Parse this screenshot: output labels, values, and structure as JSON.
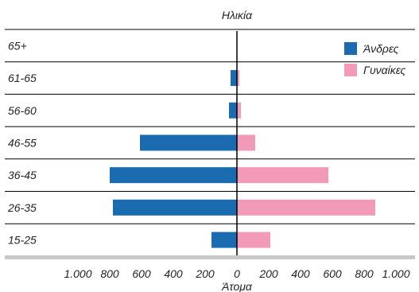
{
  "chart_data": {
    "type": "bar",
    "orientation": "horizontal-diverging",
    "title": "Ηλικία",
    "xlabel": "Άτομα",
    "categories": [
      "65+",
      "61-65",
      "56-60",
      "46-55",
      "36-45",
      "26-35",
      "15-25"
    ],
    "series": [
      {
        "name": "Άνδρες",
        "color": "#1a6bb0",
        "values": [
          0,
          40,
          50,
          610,
          800,
          780,
          160
        ]
      },
      {
        "name": "Γυναίκες",
        "color": "#f39ab8",
        "values": [
          0,
          15,
          25,
          115,
          575,
          870,
          210
        ]
      }
    ],
    "xlim": [
      -1000,
      1000
    ],
    "x_ticks": [
      {
        "value": -1000,
        "label": "1.000"
      },
      {
        "value": -800,
        "label": "800"
      },
      {
        "value": -600,
        "label": "600"
      },
      {
        "value": -400,
        "label": "400"
      },
      {
        "value": -200,
        "label": "200"
      },
      {
        "value": 0,
        "label": "0"
      },
      {
        "value": 200,
        "label": "200"
      },
      {
        "value": 400,
        "label": "400"
      },
      {
        "value": 600,
        "label": "600"
      },
      {
        "value": 800,
        "label": "800"
      },
      {
        "value": 1000,
        "label": "1.000"
      }
    ],
    "legend_position": "top-right",
    "grid": "horizontal-row-lines"
  }
}
